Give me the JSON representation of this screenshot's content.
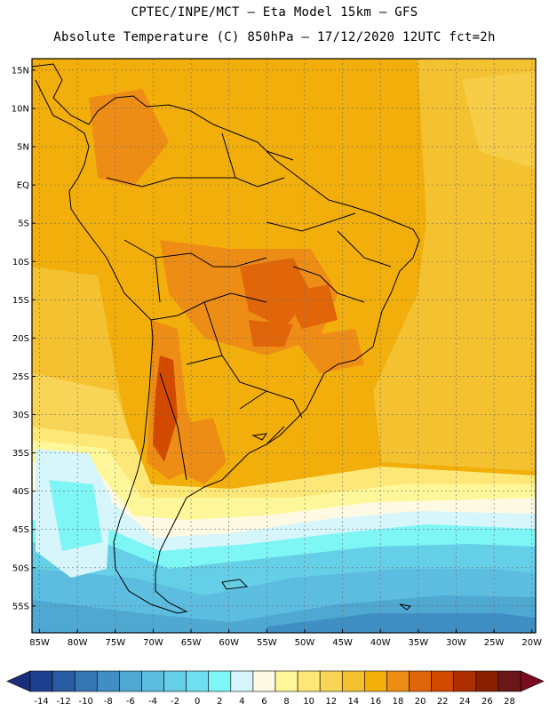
{
  "header": {
    "line1": "CPTEC/INPE/MCT –  Eta Model 15km – GFS",
    "line2": "Absolute Temperature (C) 850hPa – 17/12/2020 12UTC fct=2h"
  },
  "map": {
    "lat_labels": [
      "15N",
      "10N",
      "5N",
      "EQ",
      "5S",
      "10S",
      "15S",
      "20S",
      "25S",
      "30S",
      "35S",
      "40S",
      "45S",
      "50S",
      "55S"
    ],
    "lat_values": [
      15,
      10,
      5,
      0,
      -5,
      -10,
      -15,
      -20,
      -25,
      -30,
      -35,
      -40,
      -45,
      -50,
      -55
    ],
    "lon_labels": [
      "85W",
      "80W",
      "75W",
      "70W",
      "65W",
      "60W",
      "55W",
      "50W",
      "45W",
      "40W",
      "35W",
      "30W",
      "25W",
      "20W"
    ],
    "lon_values": [
      -85,
      -80,
      -75,
      -70,
      -65,
      -60,
      -55,
      -50,
      -45,
      -40,
      -35,
      -30,
      -25,
      -20
    ]
  },
  "colorbar": {
    "labels": [
      "-14",
      "-12",
      "-10",
      "-8",
      "-6",
      "-4",
      "-2",
      "0",
      "2",
      "4",
      "6",
      "8",
      "10",
      "12",
      "14",
      "16",
      "18",
      "20",
      "22",
      "24",
      "26",
      "28"
    ],
    "colors": [
      "#1f3f8f",
      "#2a5ca3",
      "#3576b4",
      "#3f8fc4",
      "#4ea8d2",
      "#5cbde0",
      "#66cfe8",
      "#6fe0ef",
      "#7ef6f6",
      "#d6f6fb",
      "#fef9e2",
      "#fef79a",
      "#fde877",
      "#f9d557",
      "#f4c131",
      "#f2ae0a",
      "#ee8d16",
      "#e1660a",
      "#d24a00",
      "#ad2f00",
      "#882000",
      "#6a1818"
    ],
    "left_color": "#1a2f7a",
    "right_color": "#7a0c20"
  }
}
